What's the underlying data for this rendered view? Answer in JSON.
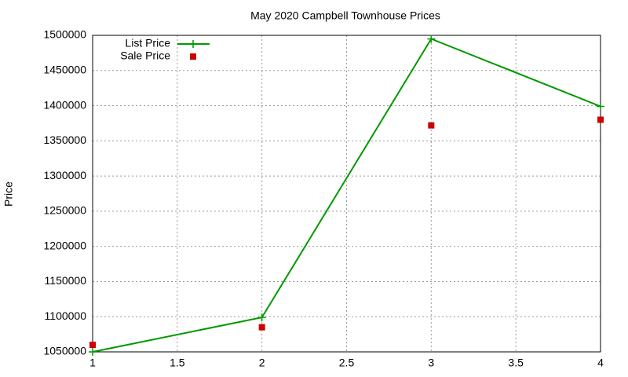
{
  "chart_data": {
    "type": "line",
    "title": "May 2020 Campbell Townhouse Prices",
    "y_label": "Price",
    "x": [
      1,
      2,
      3,
      4
    ],
    "series": [
      {
        "name": "List Price",
        "color": "#009900",
        "style": "linespoints",
        "values": [
          1050000,
          1099000,
          1495000,
          1399000
        ]
      },
      {
        "name": "Sale Price",
        "color": "#cc0000",
        "style": "points",
        "values": [
          1060000,
          1085000,
          1372000,
          1380000
        ]
      }
    ],
    "xlim": [
      1,
      4
    ],
    "xticks": [
      1,
      1.5,
      2,
      2.5,
      3,
      3.5,
      4
    ],
    "ylim": [
      1050000,
      1500000
    ],
    "yticks": [
      1050000,
      1100000,
      1150000,
      1200000,
      1250000,
      1300000,
      1350000,
      1400000,
      1450000,
      1500000
    ],
    "grid": true,
    "legend": "top-left"
  }
}
